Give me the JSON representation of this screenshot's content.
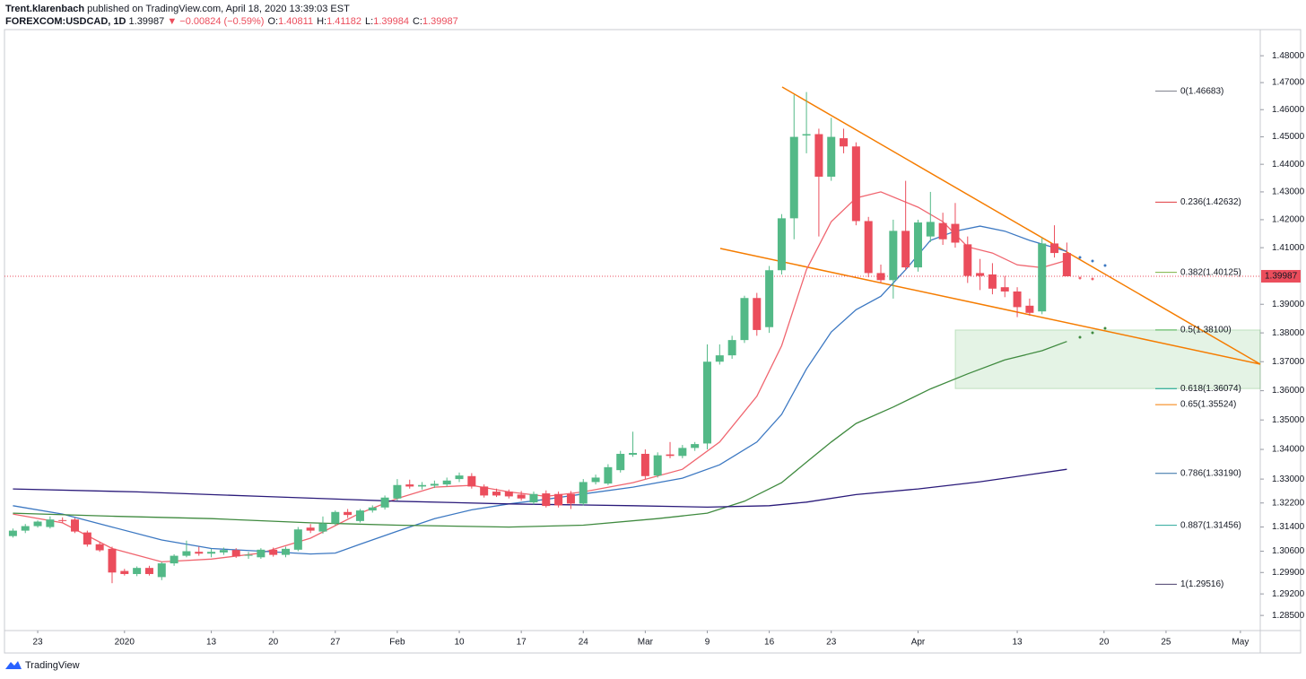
{
  "header": {
    "publisher": "Trent.klarenbach",
    "published": "published on TradingView.com, April 18, 2020 13:39:03 EST",
    "symbol": "FOREXCOM:USDCAD, 1D",
    "last": "1.39987",
    "change": "▼ −0.00824 (−0.59%)",
    "quote": [
      {
        "key": "O:",
        "value": "1.40811"
      },
      {
        "key": "H:",
        "value": "1.41182"
      },
      {
        "key": "L:",
        "value": "1.39984"
      },
      {
        "key": "C:",
        "value": "1.39987"
      }
    ]
  },
  "chart_data": {
    "type": "candlestick",
    "log_scale": true,
    "up_color": "#53b987",
    "down_color": "#eb4d5c",
    "open": [
      1.311,
      1.3128,
      1.3143,
      1.314,
      1.3163,
      1.3165,
      1.3122,
      1.3083,
      1.3068,
      1.2995,
      1.2985,
      1.3005,
      1.2975,
      1.302,
      1.3045,
      1.3058,
      1.3052,
      1.3056,
      1.3064,
      1.3045,
      1.304,
      1.3065,
      1.3048,
      1.3065,
      1.3138,
      1.3125,
      1.3152,
      1.319,
      1.316,
      1.3195,
      1.3205,
      1.3235,
      1.3282,
      1.3275,
      1.3278,
      1.3282,
      1.33,
      1.331,
      1.3275,
      1.3258,
      1.3258,
      1.3248,
      1.3222,
      1.3252,
      1.325,
      1.325,
      1.3218,
      1.329,
      1.3285,
      1.333,
      1.3382,
      1.3385,
      1.3312,
      1.3383,
      1.3378,
      1.3405,
      1.342,
      1.37,
      1.3722,
      1.3775,
      1.3922,
      1.382,
      1.402,
      1.4205,
      1.4505,
      1.451,
      1.4355,
      1.4495,
      1.4465,
      1.4195,
      1.401,
      1.3985,
      1.416,
      1.403,
      1.414,
      1.4188,
      1.4185,
      1.4112,
      1.401,
      1.4005,
      1.396,
      1.3945,
      1.3895,
      1.3875,
      1.4115,
      1.40811
    ],
    "high": [
      1.3135,
      1.315,
      1.3162,
      1.3175,
      1.3172,
      1.317,
      1.3128,
      1.309,
      1.3075,
      1.3002,
      1.301,
      1.3012,
      1.3025,
      1.305,
      1.3095,
      1.3075,
      1.3068,
      1.3072,
      1.307,
      1.3058,
      1.307,
      1.3072,
      1.3075,
      1.314,
      1.315,
      1.3175,
      1.3195,
      1.32,
      1.32,
      1.3212,
      1.3245,
      1.33,
      1.3298,
      1.329,
      1.3295,
      1.3305,
      1.3322,
      1.332,
      1.3282,
      1.3268,
      1.3265,
      1.326,
      1.3258,
      1.3262,
      1.3258,
      1.326,
      1.33,
      1.3315,
      1.335,
      1.3395,
      1.346,
      1.34,
      1.339,
      1.3425,
      1.3415,
      1.3425,
      1.376,
      1.376,
      1.379,
      1.393,
      1.394,
      1.4035,
      1.422,
      1.4655,
      1.4665,
      1.453,
      1.457,
      1.453,
      1.448,
      1.421,
      1.404,
      1.42,
      1.434,
      1.42,
      1.43,
      1.4225,
      1.426,
      1.414,
      1.406,
      1.4045,
      1.4,
      1.396,
      1.392,
      1.4135,
      1.418,
      1.41182
    ],
    "low": [
      1.3105,
      1.312,
      1.3138,
      1.3135,
      1.3155,
      1.312,
      1.3075,
      1.3058,
      1.2955,
      1.298,
      1.2978,
      1.298,
      1.2965,
      1.3012,
      1.304,
      1.3045,
      1.304,
      1.3048,
      1.3038,
      1.3035,
      1.3035,
      1.3042,
      1.304,
      1.306,
      1.312,
      1.3118,
      1.3145,
      1.317,
      1.3155,
      1.3188,
      1.3198,
      1.3228,
      1.3268,
      1.3265,
      1.327,
      1.3275,
      1.329,
      1.3268,
      1.3238,
      1.324,
      1.3235,
      1.3228,
      1.3215,
      1.3205,
      1.3205,
      1.32,
      1.3212,
      1.3282,
      1.328,
      1.3322,
      1.3375,
      1.33,
      1.3305,
      1.337,
      1.337,
      1.3395,
      1.34,
      1.369,
      1.371,
      1.3765,
      1.379,
      1.38,
      1.4005,
      1.413,
      1.444,
      1.414,
      1.434,
      1.444,
      1.418,
      1.3995,
      1.3975,
      1.392,
      1.402,
      1.4015,
      1.412,
      1.411,
      1.41,
      1.3975,
      1.395,
      1.3935,
      1.3925,
      1.3855,
      1.386,
      1.3865,
      1.4065,
      1.39984
    ],
    "close": [
      1.3128,
      1.3143,
      1.3158,
      1.3165,
      1.316,
      1.3125,
      1.3082,
      1.3063,
      1.299,
      1.2985,
      1.3005,
      1.2985,
      1.302,
      1.3045,
      1.306,
      1.3052,
      1.3058,
      1.3064,
      1.3043,
      1.3048,
      1.3065,
      1.3048,
      1.3068,
      1.3132,
      1.3128,
      1.3152,
      1.319,
      1.318,
      1.3195,
      1.3205,
      1.3238,
      1.328,
      1.3275,
      1.328,
      1.3284,
      1.3295,
      1.3312,
      1.3275,
      1.3245,
      1.3245,
      1.3242,
      1.3235,
      1.325,
      1.321,
      1.3212,
      1.3218,
      1.329,
      1.3305,
      1.334,
      1.3385,
      1.3388,
      1.331,
      1.338,
      1.3378,
      1.3405,
      1.3418,
      1.37,
      1.3722,
      1.3775,
      1.3922,
      1.381,
      1.402,
      1.4205,
      1.45,
      1.451,
      1.4355,
      1.45,
      1.4465,
      1.4195,
      1.401,
      1.3985,
      1.416,
      1.403,
      1.419,
      1.4192,
      1.413,
      1.4118,
      1.4,
      1.4,
      1.3955,
      1.3945,
      1.389,
      1.387,
      1.4115,
      1.40811,
      1.39987
    ],
    "series": [
      {
        "color": "#f0656f",
        "x": [
          0,
          4,
          8,
          12,
          16,
          20,
          24,
          28,
          31,
          34,
          37,
          40,
          43,
          46,
          50,
          54,
          57,
          60,
          62,
          64,
          66,
          68,
          70,
          73,
          75,
          77,
          79,
          81,
          83,
          85
        ],
        "values": [
          1.3183,
          1.3154,
          1.3069,
          1.3025,
          1.3034,
          1.3054,
          1.3103,
          1.3186,
          1.3235,
          1.3273,
          1.3279,
          1.3257,
          1.3242,
          1.3257,
          1.3288,
          1.3333,
          1.3425,
          1.3581,
          1.3755,
          1.4022,
          1.4193,
          1.4278,
          1.43,
          1.4245,
          1.4193,
          1.4103,
          1.4081,
          1.4039,
          1.4029,
          1.4055
        ]
      },
      {
        "color": "#3c78c2",
        "x": [
          0,
          4,
          8,
          12,
          16,
          20,
          24,
          26,
          28,
          31,
          34,
          37,
          40,
          43,
          46,
          50,
          54,
          57,
          60,
          62,
          64,
          66,
          68,
          70,
          72,
          74,
          76,
          78,
          80,
          82,
          85
        ],
        "values": [
          1.3211,
          1.3183,
          1.314,
          1.3097,
          1.3069,
          1.306,
          1.3051,
          1.3054,
          1.3083,
          1.3126,
          1.3168,
          1.3197,
          1.3217,
          1.3232,
          1.325,
          1.3273,
          1.3303,
          1.3348,
          1.3425,
          1.3519,
          1.3675,
          1.3803,
          1.3881,
          1.3928,
          1.4022,
          1.4126,
          1.4159,
          1.4177,
          1.4159,
          1.4126,
          1.4087
        ]
      },
      {
        "color": "#3f8a3f",
        "x": [
          0,
          8,
          16,
          24,
          31,
          40,
          46,
          52,
          56,
          59,
          62,
          64,
          66,
          68,
          71,
          74,
          77,
          80,
          83,
          85
        ],
        "values": [
          1.3186,
          1.3176,
          1.3168,
          1.3154,
          1.3146,
          1.314,
          1.3146,
          1.3168,
          1.3186,
          1.3226,
          1.3288,
          1.3357,
          1.3425,
          1.3488,
          1.3544,
          1.3606,
          1.3658,
          1.3706,
          1.3738,
          1.377
        ]
      },
      {
        "color": "#2a1a7a",
        "x": [
          0,
          10,
          20,
          31,
          40,
          50,
          56,
          61,
          64,
          68,
          73,
          78,
          85
        ],
        "values": [
          1.3267,
          1.3257,
          1.3242,
          1.3226,
          1.3217,
          1.3211,
          1.3206,
          1.3211,
          1.3223,
          1.3248,
          1.3267,
          1.3291,
          1.3333
        ]
      }
    ],
    "xlim": [
      -0.68,
      100.6
    ],
    "xticks": [
      {
        "value": 2,
        "label": "23"
      },
      {
        "value": 9,
        "label": "2020"
      },
      {
        "value": 16,
        "label": "13"
      },
      {
        "value": 21,
        "label": "20"
      },
      {
        "value": 26,
        "label": "27"
      },
      {
        "value": 31,
        "label": "Feb"
      },
      {
        "value": 36,
        "label": "10"
      },
      {
        "value": 41,
        "label": "17"
      },
      {
        "value": 46,
        "label": "24"
      },
      {
        "value": 51,
        "label": "Mar"
      },
      {
        "value": 56,
        "label": "9"
      },
      {
        "value": 61,
        "label": "16"
      },
      {
        "value": 66,
        "label": "23"
      },
      {
        "value": 73,
        "label": "Apr"
      },
      {
        "value": 81,
        "label": "13"
      },
      {
        "value": 88,
        "label": "20"
      },
      {
        "value": 93,
        "label": "25"
      },
      {
        "value": 99,
        "label": "May"
      }
    ],
    "ylim": [
      1.2801,
      1.4898
    ],
    "yticks": [
      {
        "value": 1.48,
        "label": "1.48000"
      },
      {
        "value": 1.47,
        "label": "1.47000"
      },
      {
        "value": 1.46,
        "label": "1.46000"
      },
      {
        "value": 1.45,
        "label": "1.45000"
      },
      {
        "value": 1.44,
        "label": "1.44000"
      },
      {
        "value": 1.43,
        "label": "1.43000"
      },
      {
        "value": 1.42,
        "label": "1.42000"
      },
      {
        "value": 1.41,
        "label": "1.41000"
      },
      {
        "value": 1.39,
        "label": "1.39000"
      },
      {
        "value": 1.38,
        "label": "1.38000"
      },
      {
        "value": 1.37,
        "label": "1.37000"
      },
      {
        "value": 1.36,
        "label": "1.36000"
      },
      {
        "value": 1.35,
        "label": "1.35000"
      },
      {
        "value": 1.34,
        "label": "1.34000"
      },
      {
        "value": 1.33,
        "label": "1.33000"
      },
      {
        "value": 1.322,
        "label": "1.32200"
      },
      {
        "value": 1.314,
        "label": "1.31400"
      },
      {
        "value": 1.306,
        "label": "1.30600"
      },
      {
        "value": 1.299,
        "label": "1.29900"
      },
      {
        "value": 1.292,
        "label": "1.29200"
      },
      {
        "value": 1.285,
        "label": "1.28500"
      }
    ],
    "fib_levels": [
      {
        "label": "0(1.46683)",
        "value": 1.46683,
        "color": "#787b86"
      },
      {
        "label": "0.236(1.42632)",
        "value": 1.42632,
        "color": "#e0393e"
      },
      {
        "label": "0.382(1.40125)",
        "value": 1.40125,
        "color": "#7cb342"
      },
      {
        "label": "0.5(1.38100)",
        "value": 1.381,
        "color": "#4caf50"
      },
      {
        "label": "0.618(1.36074)",
        "value": 1.36074,
        "color": "#0a9e8a"
      },
      {
        "label": "0.65(1.35524)",
        "value": 1.35524,
        "color": "#f57c00"
      },
      {
        "label": "0.786(1.33190)",
        "value": 1.3319,
        "color": "#2e6da4"
      },
      {
        "label": "0.887(1.31456)",
        "value": 1.31456,
        "color": "#26a69a"
      },
      {
        "label": "1(1.29516)",
        "value": 1.29516,
        "color": "#4a3f6b"
      }
    ]
  },
  "footer": {
    "logo": "TradingView"
  }
}
